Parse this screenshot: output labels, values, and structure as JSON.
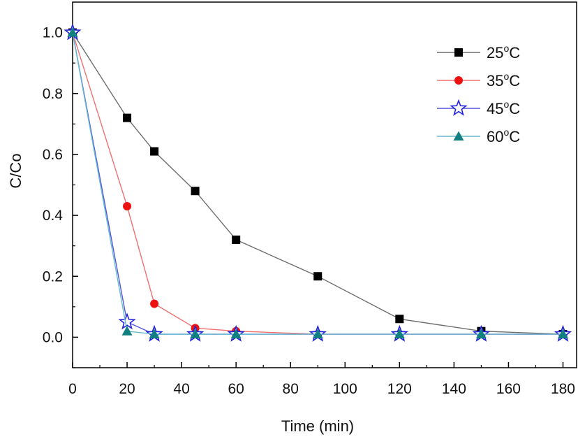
{
  "chart_data": {
    "type": "line",
    "title": "",
    "xlabel": "Time (min)",
    "ylabel": "C/Co",
    "xlim": [
      0,
      180
    ],
    "ylim": [
      -0.1,
      1.1
    ],
    "xticks": [
      0,
      20,
      40,
      60,
      80,
      100,
      120,
      140,
      160,
      180
    ],
    "xtick_labels": [
      "0",
      "20",
      "40",
      "60",
      "80",
      "100",
      "120",
      "140",
      "160",
      "180"
    ],
    "yticks": [
      0.0,
      0.2,
      0.4,
      0.6,
      0.8,
      1.0
    ],
    "ytick_labels": [
      "0.0",
      "0.2",
      "0.4",
      "0.6",
      "0.8",
      "1.0"
    ],
    "grid": false,
    "legend_position": "top-right",
    "series": [
      {
        "name": "25°C",
        "label_base": "25",
        "label_sup": "o",
        "label_unit": "C",
        "color": "#6e6e6e",
        "marker": "square",
        "marker_color": "#000000",
        "marker_fill": "filled",
        "x": [
          0,
          20,
          30,
          45,
          60,
          90,
          120,
          150,
          180
        ],
        "y": [
          1.0,
          0.72,
          0.61,
          0.48,
          0.32,
          0.2,
          0.06,
          0.02,
          0.01
        ]
      },
      {
        "name": "35°C",
        "label_base": "35",
        "label_sup": "o",
        "label_unit": "C",
        "color": "#f07070",
        "marker": "circle",
        "marker_color": "#ee1111",
        "marker_fill": "filled",
        "x": [
          0,
          20,
          30,
          45,
          60,
          90,
          120,
          150,
          180
        ],
        "y": [
          1.0,
          0.43,
          0.11,
          0.03,
          0.02,
          0.01,
          0.01,
          0.01,
          0.01
        ]
      },
      {
        "name": "45°C",
        "label_base": "45",
        "label_sup": "o",
        "label_unit": "C",
        "color": "#5555dd",
        "marker": "star",
        "marker_color": "#2222dd",
        "marker_fill": "open",
        "x": [
          0,
          20,
          30,
          45,
          60,
          90,
          120,
          150,
          180
        ],
        "y": [
          1.0,
          0.05,
          0.01,
          0.01,
          0.01,
          0.01,
          0.01,
          0.01,
          0.01
        ]
      },
      {
        "name": "60°C",
        "label_base": "60",
        "label_sup": "o",
        "label_unit": "C",
        "color": "#66bbcc",
        "marker": "triangle",
        "marker_color": "#118080",
        "marker_fill": "filled",
        "x": [
          0,
          20,
          30,
          45,
          60,
          90,
          120,
          150,
          180
        ],
        "y": [
          1.0,
          0.02,
          0.01,
          0.01,
          0.01,
          0.01,
          0.01,
          0.01,
          0.01
        ]
      }
    ]
  }
}
